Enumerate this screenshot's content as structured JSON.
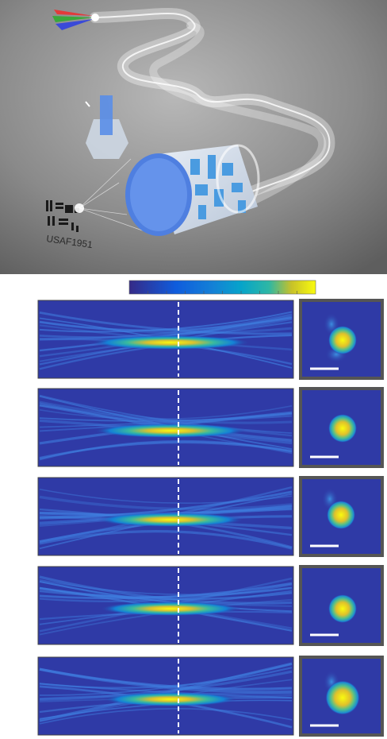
{
  "illustration": {
    "target_label": "USAF1951"
  }
}
